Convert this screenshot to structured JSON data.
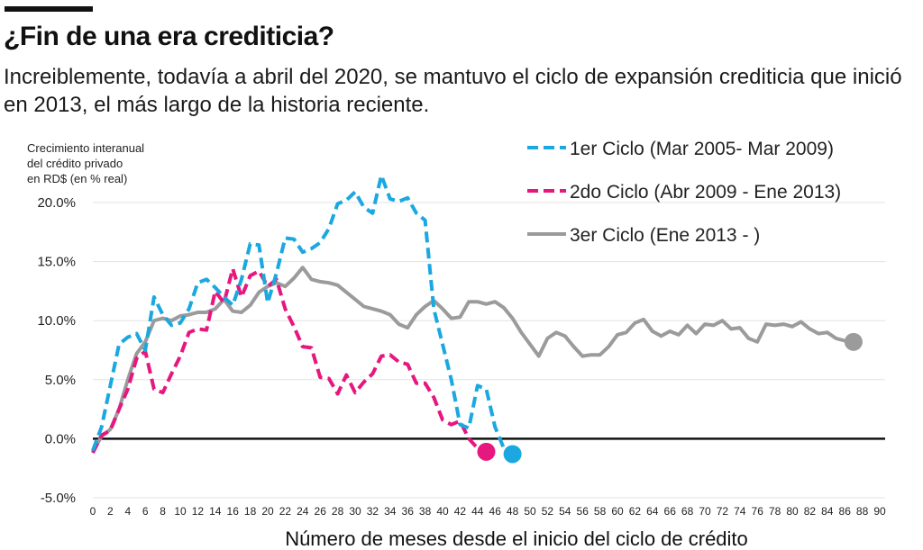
{
  "title": "¿Fin de una era crediticia?",
  "subtitle": "Increiblemente, todavía a abril del 2020, se mantuvo el ciclo de expansión crediticia que inició en 2013, el más largo de la historia reciente.",
  "chart_data": {
    "type": "line",
    "ylabel": [
      "Crecimiento interanual",
      "del crédito privado",
      "en RD$ (en % real)"
    ],
    "xlabel": "Número de meses desde el inicio del ciclo de crédito",
    "xlim": [
      0,
      90
    ],
    "ylim": [
      -5,
      20
    ],
    "xticks": [
      0,
      2,
      4,
      6,
      8,
      10,
      12,
      14,
      16,
      18,
      20,
      22,
      24,
      26,
      28,
      30,
      32,
      34,
      36,
      38,
      40,
      42,
      44,
      46,
      48,
      50,
      52,
      54,
      56,
      58,
      60,
      62,
      64,
      66,
      68,
      70,
      72,
      74,
      76,
      78,
      80,
      82,
      84,
      86,
      88,
      90
    ],
    "yticks": [
      {
        "value": 20,
        "label": "20.0%"
      },
      {
        "value": 15,
        "label": "15.0%"
      },
      {
        "value": 10,
        "label": "10.0%"
      },
      {
        "value": 5,
        "label": "5.0%"
      },
      {
        "value": 0,
        "label": "0.0%"
      },
      {
        "value": -5,
        "label": "-5.0%"
      }
    ],
    "legend_position": "top-right",
    "series": [
      {
        "name": "1er Ciclo (Mar 2005- Mar 2009)",
        "color": "#1ba8e0",
        "dash": true,
        "end_marker": true,
        "points": [
          [
            0,
            -1.0
          ],
          [
            1,
            1.0
          ],
          [
            2,
            4.5
          ],
          [
            3,
            8.0
          ],
          [
            4,
            8.6
          ],
          [
            5,
            8.9
          ],
          [
            6,
            7.5
          ],
          [
            7,
            12.0
          ],
          [
            8,
            10.5
          ],
          [
            9,
            9.6
          ],
          [
            10,
            9.8
          ],
          [
            11,
            11.0
          ],
          [
            12,
            13.2
          ],
          [
            13,
            13.5
          ],
          [
            14,
            12.8
          ],
          [
            15,
            12.0
          ],
          [
            16,
            11.3
          ],
          [
            17,
            13.5
          ],
          [
            18,
            16.5
          ],
          [
            19,
            16.4
          ],
          [
            20,
            11.5
          ],
          [
            21,
            14.0
          ],
          [
            22,
            17.0
          ],
          [
            23,
            16.9
          ],
          [
            24,
            15.8
          ],
          [
            25,
            16.1
          ],
          [
            26,
            16.6
          ],
          [
            27,
            17.8
          ],
          [
            28,
            19.9
          ],
          [
            29,
            20.2
          ],
          [
            30,
            20.9
          ],
          [
            31,
            19.6
          ],
          [
            32,
            19.1
          ],
          [
            33,
            22.3
          ],
          [
            34,
            20.3
          ],
          [
            35,
            20.1
          ],
          [
            36,
            20.4
          ],
          [
            37,
            19.1
          ],
          [
            38,
            18.5
          ],
          [
            39,
            11.0
          ],
          [
            40,
            8.0
          ],
          [
            41,
            5.0
          ],
          [
            42,
            1.2
          ],
          [
            43,
            0.9
          ],
          [
            44,
            4.5
          ],
          [
            45,
            4.2
          ],
          [
            46,
            1.0
          ],
          [
            47,
            -0.8
          ],
          [
            48,
            -1.3
          ]
        ]
      },
      {
        "name": "2do Ciclo (Abr 2009 - Ene 2013)",
        "color": "#e6177f",
        "dash": true,
        "end_marker": true,
        "points": [
          [
            0,
            -1.2
          ],
          [
            1,
            0.3
          ],
          [
            2,
            0.7
          ],
          [
            3,
            2.5
          ],
          [
            4,
            4.2
          ],
          [
            5,
            6.8
          ],
          [
            6,
            7.4
          ],
          [
            7,
            4.2
          ],
          [
            8,
            3.9
          ],
          [
            9,
            5.5
          ],
          [
            10,
            7.0
          ],
          [
            11,
            9.0
          ],
          [
            12,
            9.3
          ],
          [
            13,
            9.2
          ],
          [
            14,
            12.5
          ],
          [
            15,
            11.5
          ],
          [
            16,
            14.4
          ],
          [
            17,
            12.0
          ],
          [
            18,
            13.8
          ],
          [
            19,
            14.2
          ],
          [
            20,
            12.9
          ],
          [
            21,
            13.5
          ],
          [
            22,
            11.0
          ],
          [
            23,
            9.5
          ],
          [
            24,
            7.8
          ],
          [
            25,
            7.7
          ],
          [
            26,
            5.2
          ],
          [
            27,
            5.1
          ],
          [
            28,
            3.8
          ],
          [
            29,
            5.4
          ],
          [
            30,
            3.9
          ],
          [
            31,
            4.8
          ],
          [
            32,
            5.5
          ],
          [
            33,
            7.0
          ],
          [
            34,
            7.1
          ],
          [
            35,
            6.5
          ],
          [
            36,
            6.3
          ],
          [
            37,
            4.7
          ],
          [
            38,
            4.7
          ],
          [
            39,
            3.5
          ],
          [
            40,
            1.6
          ],
          [
            41,
            1.2
          ],
          [
            42,
            1.5
          ],
          [
            43,
            0.0
          ],
          [
            44,
            -0.8
          ],
          [
            45,
            -1.1
          ]
        ]
      },
      {
        "name": "3er Ciclo (Ene 2013 - )",
        "color": "#9b9b9b",
        "dash": false,
        "end_marker": true,
        "points": [
          [
            0,
            -1.1
          ],
          [
            1,
            0.2
          ],
          [
            2,
            0.8
          ],
          [
            3,
            2.5
          ],
          [
            4,
            5.0
          ],
          [
            5,
            7.2
          ],
          [
            6,
            8.2
          ],
          [
            7,
            10.0
          ],
          [
            8,
            10.2
          ],
          [
            9,
            10.0
          ],
          [
            10,
            10.4
          ],
          [
            11,
            10.5
          ],
          [
            12,
            10.7
          ],
          [
            13,
            10.7
          ],
          [
            14,
            11.0
          ],
          [
            15,
            11.8
          ],
          [
            16,
            10.8
          ],
          [
            17,
            10.7
          ],
          [
            18,
            11.3
          ],
          [
            19,
            12.4
          ],
          [
            20,
            12.9
          ],
          [
            21,
            13.2
          ],
          [
            22,
            12.9
          ],
          [
            23,
            13.6
          ],
          [
            24,
            14.5
          ],
          [
            25,
            13.5
          ],
          [
            26,
            13.3
          ],
          [
            27,
            13.2
          ],
          [
            28,
            13.0
          ],
          [
            29,
            12.4
          ],
          [
            30,
            11.8
          ],
          [
            31,
            11.2
          ],
          [
            32,
            11.0
          ],
          [
            33,
            10.8
          ],
          [
            34,
            10.5
          ],
          [
            35,
            9.7
          ],
          [
            36,
            9.4
          ],
          [
            37,
            10.5
          ],
          [
            38,
            11.2
          ],
          [
            39,
            11.7
          ],
          [
            40,
            11.0
          ],
          [
            41,
            10.2
          ],
          [
            42,
            10.3
          ],
          [
            43,
            11.6
          ],
          [
            44,
            11.6
          ],
          [
            45,
            11.4
          ],
          [
            46,
            11.6
          ],
          [
            47,
            11.1
          ],
          [
            48,
            10.2
          ],
          [
            49,
            9.0
          ],
          [
            50,
            8.0
          ],
          [
            51,
            7.0
          ],
          [
            52,
            8.5
          ],
          [
            53,
            9.0
          ],
          [
            54,
            8.7
          ],
          [
            55,
            7.8
          ],
          [
            56,
            7.0
          ],
          [
            57,
            7.1
          ],
          [
            58,
            7.1
          ],
          [
            59,
            7.8
          ],
          [
            60,
            8.8
          ],
          [
            61,
            9.0
          ],
          [
            62,
            9.8
          ],
          [
            63,
            10.1
          ],
          [
            64,
            9.1
          ],
          [
            65,
            8.7
          ],
          [
            66,
            9.1
          ],
          [
            67,
            8.8
          ],
          [
            68,
            9.6
          ],
          [
            69,
            8.9
          ],
          [
            70,
            9.7
          ],
          [
            71,
            9.6
          ],
          [
            72,
            10.0
          ],
          [
            73,
            9.3
          ],
          [
            74,
            9.4
          ],
          [
            75,
            8.5
          ],
          [
            76,
            8.2
          ],
          [
            77,
            9.7
          ],
          [
            78,
            9.6
          ],
          [
            79,
            9.7
          ],
          [
            80,
            9.5
          ],
          [
            81,
            9.9
          ],
          [
            82,
            9.3
          ],
          [
            83,
            8.9
          ],
          [
            84,
            9.0
          ],
          [
            85,
            8.5
          ],
          [
            86,
            8.3
          ],
          [
            87,
            8.2
          ]
        ]
      }
    ]
  }
}
